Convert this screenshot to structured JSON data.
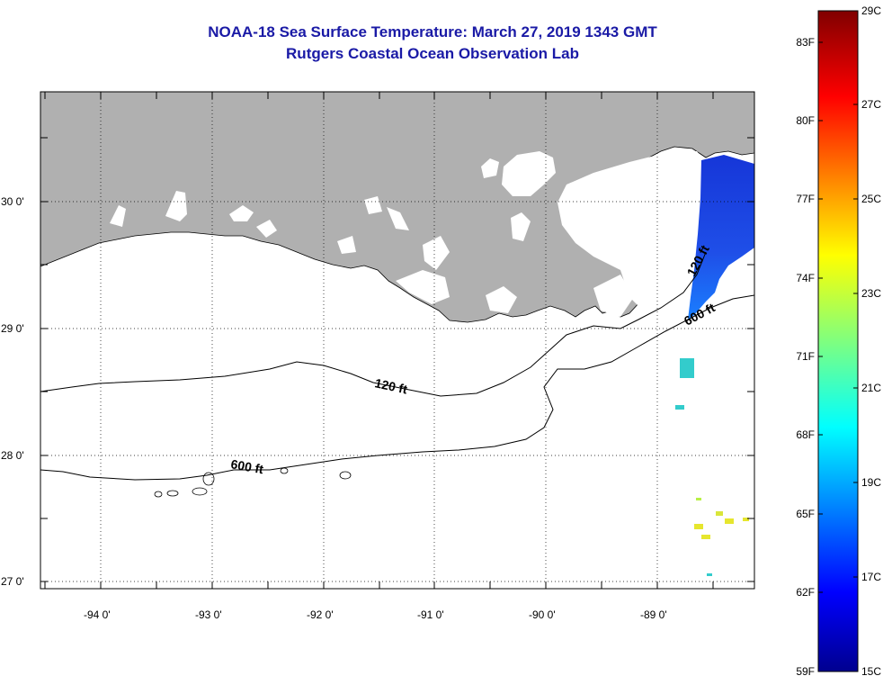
{
  "header": {
    "title_line1": "NOAA-18 Sea Surface Temperature:  March 27, 2019 1343 GMT",
    "title_line2": "Rutgers Coastal Ocean Observation Lab"
  },
  "map": {
    "latitude_labels": [
      "30 0'",
      "29 0'",
      "28 0'",
      "27 0'"
    ],
    "longitude_labels": [
      "-94 0'",
      "-93 0'",
      "-92 0'",
      "-91 0'",
      "-90 0'",
      "-89 0'"
    ],
    "contour_labels": [
      "120 ft",
      "600 ft",
      "600 ft",
      "120 ft"
    ],
    "colors": {
      "land": "#b0b0b0",
      "cloud": "#ffffff",
      "contour": "#000000",
      "title": "#1a1aa6"
    }
  },
  "colorbar": {
    "fahrenheit_labels": [
      "83F",
      "80F",
      "77F",
      "74F",
      "71F",
      "68F",
      "65F",
      "62F",
      "59F"
    ],
    "celsius_labels": [
      "29C",
      "27C",
      "25C",
      "23C",
      "21C",
      "19C",
      "17C",
      "15C"
    ],
    "colormap": "jet",
    "range_c": [
      15,
      29
    ]
  }
}
